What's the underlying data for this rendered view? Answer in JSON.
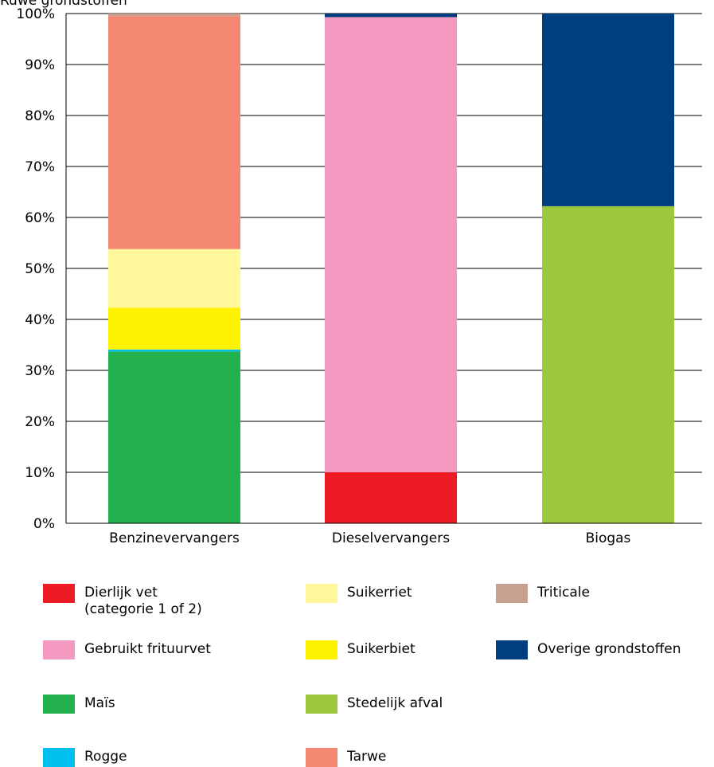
{
  "chart_data": {
    "type": "bar",
    "stacked": true,
    "title": "Ruwe grondstoffen",
    "xlabel": "",
    "ylabel": "",
    "ylim": [
      0,
      100
    ],
    "yticks": [
      "0%",
      "10%",
      "20%",
      "30%",
      "40%",
      "50%",
      "60%",
      "70%",
      "80%",
      "90%",
      "100%"
    ],
    "categories": [
      "Benzinevervangers",
      "Dieselvervangers",
      "Biogas"
    ],
    "series": [
      {
        "name": "Dierlijk vet\n(categorie 1 of 2)",
        "color": "#ed1c24",
        "values": [
          0,
          10,
          0
        ]
      },
      {
        "name": "Gebruikt frituurvet",
        "color": "#f49ac1",
        "values": [
          0,
          89.3,
          0
        ]
      },
      {
        "name": "Maïs",
        "color": "#22b14c",
        "values": [
          33.7,
          0,
          0
        ]
      },
      {
        "name": "Rogge",
        "color": "#00bfef",
        "values": [
          0.4,
          0,
          0
        ]
      },
      {
        "name": "Suikerbiet",
        "color": "#fff200",
        "values": [
          8.2,
          0,
          0
        ]
      },
      {
        "name": "Suikerriet",
        "color": "#fff799",
        "values": [
          11.5,
          0,
          0
        ]
      },
      {
        "name": "Tarwe",
        "color": "#f48872",
        "values": [
          45.7,
          0,
          0
        ]
      },
      {
        "name": "Triticale",
        "color": "#c7a08f",
        "values": [
          0.5,
          0,
          0
        ]
      },
      {
        "name": "Stedelijk afval",
        "color": "#9bc83c",
        "values": [
          0,
          0,
          62.2
        ]
      },
      {
        "name": "Overige grondstoffen",
        "color": "#003f7f",
        "values": [
          0,
          0.7,
          37.8
        ]
      }
    ],
    "grid": true,
    "legend_position": "bottom"
  },
  "legend": {
    "columns": [
      [
        "Dierlijk vet\n(categorie 1 of 2)",
        "Gebruikt frituurvet",
        "Maïs",
        "Rogge"
      ],
      [
        "Suikerriet",
        "Suikerbiet",
        "Stedelijk afval",
        "Tarwe"
      ],
      [
        "Triticale",
        "Overige grondstoffen"
      ]
    ]
  }
}
